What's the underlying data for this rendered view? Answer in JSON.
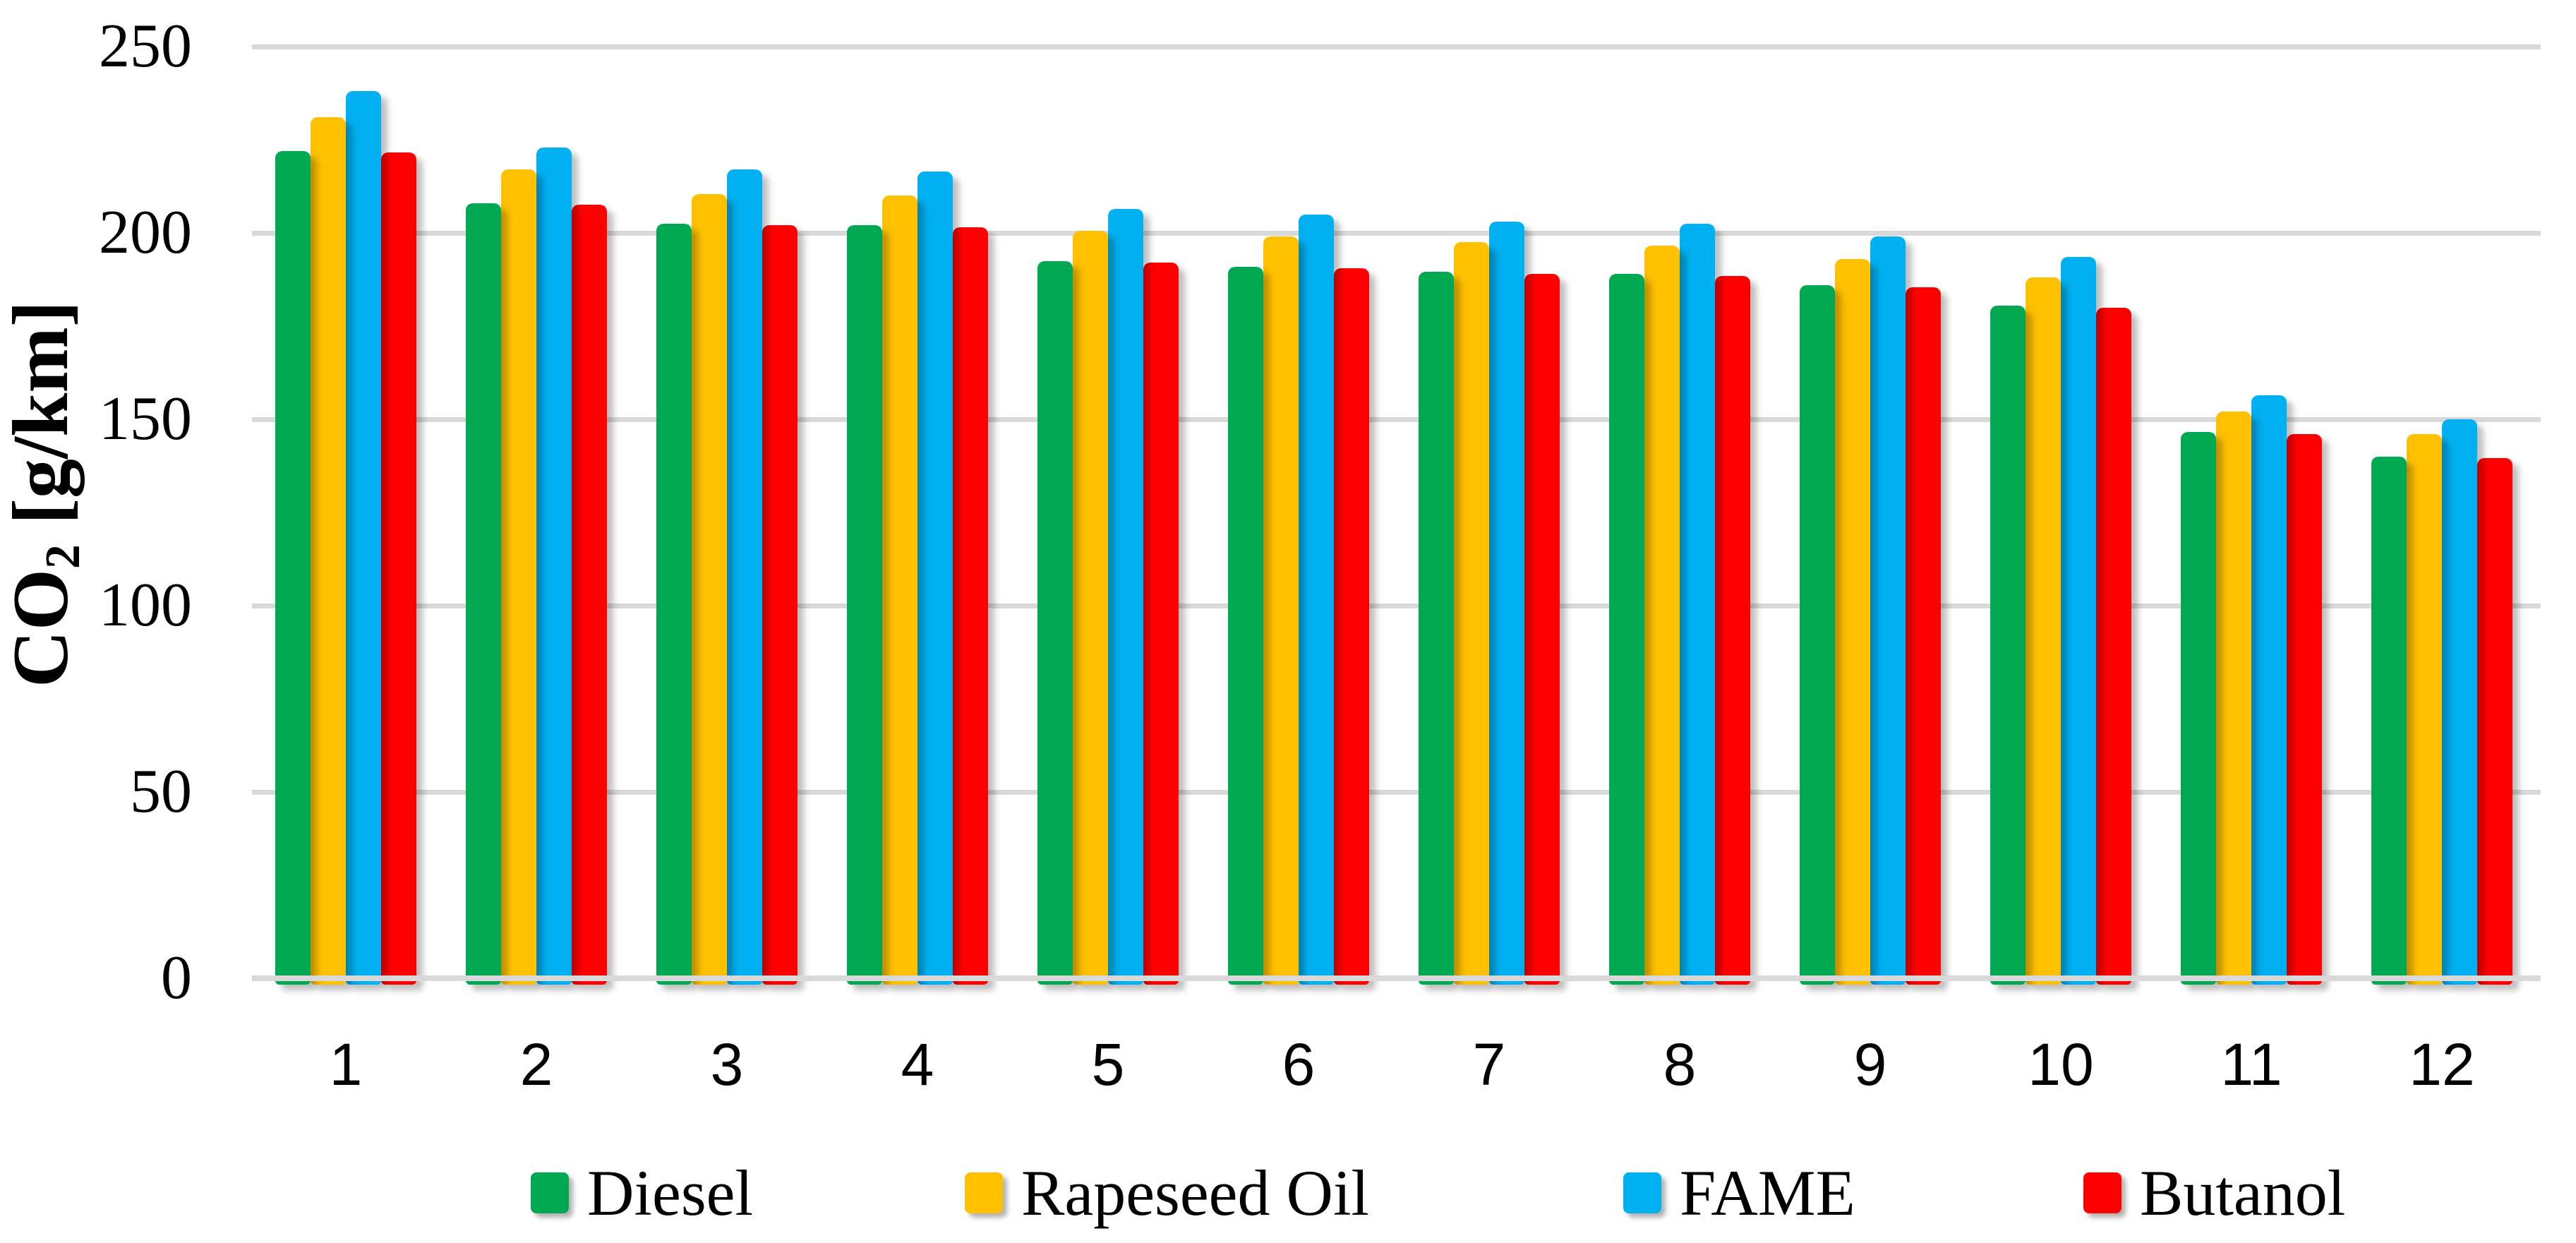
{
  "chart_data": {
    "type": "bar",
    "title": "",
    "xlabel": "",
    "ylabel": "CO2 [g/km]",
    "ylabel_parts": {
      "main": "CO",
      "sub": "2",
      "unit": " [g/km]"
    },
    "ylim": [
      0,
      250
    ],
    "ytick_interval": 50,
    "yticks": [
      250,
      200,
      150,
      100,
      50,
      0
    ],
    "grid": true,
    "legend_position": "bottom",
    "gridline_color": "#D9D9D9",
    "text_color": "#000000",
    "categories": [
      "1",
      "2",
      "3",
      "4",
      "5",
      "6",
      "7",
      "8",
      "9",
      "10",
      "11",
      "12"
    ],
    "series": [
      {
        "name": "Diesel",
        "color": "#00A851",
        "values": [
          222,
          208,
          202.5,
          202,
          192.5,
          191,
          189.5,
          189,
          186,
          180.5,
          146.5,
          140
        ]
      },
      {
        "name": "Rapeseed Oil",
        "color": "#FFC000",
        "values": [
          231,
          217,
          210.5,
          210,
          200.5,
          199,
          197.5,
          196.5,
          193,
          188,
          152,
          146
        ]
      },
      {
        "name": "FAME",
        "color": "#00B0F0",
        "values": [
          238,
          223,
          217,
          216.5,
          206.5,
          205,
          203,
          202.5,
          199,
          193.5,
          156.5,
          150
        ]
      },
      {
        "name": "Butanol",
        "color": "#FF0000",
        "values": [
          221.5,
          207.5,
          202,
          201.5,
          192,
          190.5,
          189,
          188.5,
          185.5,
          180,
          146,
          139.5
        ]
      }
    ]
  }
}
